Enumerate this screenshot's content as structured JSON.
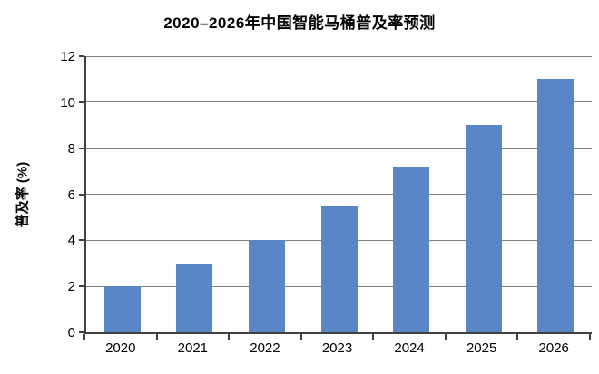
{
  "chart_data": {
    "type": "bar",
    "title": "2020–2026年中国智能马桶普及率预测",
    "categories": [
      "2020",
      "2021",
      "2022",
      "2023",
      "2024",
      "2025",
      "2026"
    ],
    "values": [
      2,
      3,
      4,
      5.5,
      7.2,
      9,
      11
    ],
    "xlabel": "",
    "ylabel": "普及率 (%)",
    "ylim": [
      0,
      12
    ],
    "ytick_step": 2,
    "ytick_labels": [
      "0",
      "2",
      "4",
      "6",
      "8",
      "10",
      "12"
    ],
    "grid": true,
    "legend": "none",
    "colors": {
      "bar": "#5886C6",
      "gridline": "#7f7f7f",
      "axis": "#404040",
      "text": "#000000",
      "background": "#ffffff"
    }
  }
}
